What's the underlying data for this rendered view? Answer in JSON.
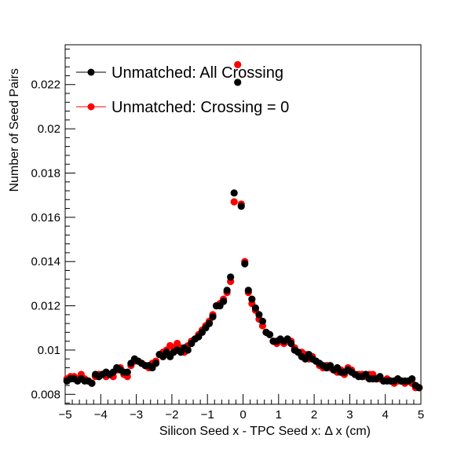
{
  "chart_data": {
    "type": "scatter",
    "title": "",
    "xlabel": "Silicon Seed x - TPC Seed x:      Δ x (cm)",
    "ylabel": "Number of Seed Pairs",
    "xlim": [
      -5,
      5
    ],
    "ylim": [
      0.00755,
      0.0238
    ],
    "xticks": [
      -5,
      -4,
      -3,
      -2,
      -1,
      0,
      1,
      2,
      3,
      4,
      5
    ],
    "xtick_labels": [
      "−5",
      "−4",
      "−3",
      "−2",
      "−1",
      "0",
      "1",
      "2",
      "3",
      "4",
      "5"
    ],
    "yticks": [
      0.008,
      0.01,
      0.012,
      0.014,
      0.016,
      0.018,
      0.02,
      0.022
    ],
    "ytick_labels": [
      "0.008",
      "0.01",
      "0.012",
      "0.014",
      "0.016",
      "0.018",
      "0.02",
      "0.022"
    ],
    "grid": false,
    "legend_position": "top-left",
    "series": [
      {
        "name": "Unmatched: Crossing = 0",
        "color": "#ff0000",
        "x": [
          -4.95,
          -4.85,
          -4.75,
          -4.65,
          -4.55,
          -4.45,
          -4.35,
          -4.25,
          -4.15,
          -4.05,
          -3.95,
          -3.85,
          -3.75,
          -3.65,
          -3.55,
          -3.45,
          -3.35,
          -3.25,
          -3.15,
          -3.05,
          -2.95,
          -2.85,
          -2.75,
          -2.65,
          -2.55,
          -2.45,
          -2.35,
          -2.25,
          -2.15,
          -2.05,
          -1.95,
          -1.85,
          -1.75,
          -1.65,
          -1.55,
          -1.45,
          -1.35,
          -1.25,
          -1.15,
          -1.05,
          -0.95,
          -0.85,
          -0.75,
          -0.65,
          -0.55,
          -0.45,
          -0.35,
          -0.25,
          -0.15,
          -0.05,
          0.05,
          0.15,
          0.25,
          0.35,
          0.45,
          0.55,
          0.65,
          0.75,
          0.85,
          0.95,
          1.05,
          1.15,
          1.25,
          1.35,
          1.45,
          1.55,
          1.65,
          1.75,
          1.85,
          1.95,
          2.05,
          2.15,
          2.25,
          2.35,
          2.45,
          2.55,
          2.65,
          2.75,
          2.85,
          2.95,
          3.05,
          3.15,
          3.25,
          3.35,
          3.45,
          3.55,
          3.65,
          3.75,
          3.85,
          3.95,
          4.05,
          4.15,
          4.25,
          4.35,
          4.45,
          4.55,
          4.65,
          4.75,
          4.85,
          4.95
        ],
        "y": [
          0.0087,
          0.0088,
          0.0088,
          0.0087,
          0.0089,
          0.0087,
          0.0086,
          0.0085,
          0.0088,
          0.0089,
          0.0089,
          0.0088,
          0.0089,
          0.0088,
          0.0091,
          0.0092,
          0.0089,
          0.0088,
          0.0093,
          0.0095,
          0.0095,
          0.0094,
          0.0093,
          0.0092,
          0.0094,
          0.0095,
          0.0098,
          0.0099,
          0.01,
          0.0102,
          0.0101,
          0.0103,
          0.0101,
          0.0099,
          0.0102,
          0.0104,
          0.0105,
          0.0107,
          0.0109,
          0.0111,
          0.0113,
          0.0116,
          0.012,
          0.0121,
          0.0123,
          0.0126,
          0.0131,
          0.0167,
          0.0229,
          0.0166,
          0.014,
          0.0126,
          0.0121,
          0.0118,
          0.0114,
          0.0111,
          0.0108,
          0.0107,
          0.0104,
          0.0103,
          0.0104,
          0.0103,
          0.0105,
          0.0104,
          0.0101,
          0.0099,
          0.0099,
          0.0098,
          0.0096,
          0.0097,
          0.0095,
          0.0093,
          0.0092,
          0.0093,
          0.0092,
          0.0091,
          0.009,
          0.0091,
          0.0089,
          0.0092,
          0.0091,
          0.0089,
          0.0089,
          0.0089,
          0.0088,
          0.0089,
          0.0089,
          0.0087,
          0.0087,
          0.0086,
          0.0087,
          0.0086,
          0.0085,
          0.0086,
          0.0086,
          0.0085,
          0.0086,
          0.0085,
          0.0083,
          0.0083
        ]
      },
      {
        "name": "Unmatched: All Crossing",
        "color": "#000000",
        "x": [
          -4.95,
          -4.85,
          -4.75,
          -4.65,
          -4.55,
          -4.45,
          -4.35,
          -4.25,
          -4.15,
          -4.05,
          -3.95,
          -3.85,
          -3.75,
          -3.65,
          -3.55,
          -3.45,
          -3.35,
          -3.25,
          -3.15,
          -3.05,
          -2.95,
          -2.85,
          -2.75,
          -2.65,
          -2.55,
          -2.45,
          -2.35,
          -2.25,
          -2.15,
          -2.05,
          -1.95,
          -1.85,
          -1.75,
          -1.65,
          -1.55,
          -1.45,
          -1.35,
          -1.25,
          -1.15,
          -1.05,
          -0.95,
          -0.85,
          -0.75,
          -0.65,
          -0.55,
          -0.45,
          -0.35,
          -0.25,
          -0.15,
          -0.05,
          0.05,
          0.15,
          0.25,
          0.35,
          0.45,
          0.55,
          0.65,
          0.75,
          0.85,
          0.95,
          1.05,
          1.15,
          1.25,
          1.35,
          1.45,
          1.55,
          1.65,
          1.75,
          1.85,
          1.95,
          2.05,
          2.15,
          2.25,
          2.35,
          2.45,
          2.55,
          2.65,
          2.75,
          2.85,
          2.95,
          3.05,
          3.15,
          3.25,
          3.35,
          3.45,
          3.55,
          3.65,
          3.75,
          3.85,
          3.95,
          4.05,
          4.15,
          4.25,
          4.35,
          4.45,
          4.55,
          4.65,
          4.75,
          4.85,
          4.95
        ],
        "y": [
          0.0086,
          0.0087,
          0.0087,
          0.0086,
          0.0087,
          0.0086,
          0.0086,
          0.0085,
          0.0089,
          0.0088,
          0.0089,
          0.009,
          0.0089,
          0.009,
          0.0092,
          0.0091,
          0.009,
          0.009,
          0.0094,
          0.0096,
          0.0095,
          0.0094,
          0.0093,
          0.0093,
          0.0092,
          0.0094,
          0.0098,
          0.0097,
          0.0099,
          0.0097,
          0.0099,
          0.01,
          0.0099,
          0.0101,
          0.01,
          0.0103,
          0.0105,
          0.0106,
          0.0108,
          0.011,
          0.0112,
          0.0115,
          0.012,
          0.012,
          0.0122,
          0.0127,
          0.0133,
          0.0171,
          0.0221,
          0.0165,
          0.0139,
          0.0127,
          0.0123,
          0.0119,
          0.0116,
          0.0113,
          0.0108,
          0.0107,
          0.0104,
          0.0104,
          0.0105,
          0.0104,
          0.0105,
          0.0103,
          0.01,
          0.0099,
          0.0097,
          0.0096,
          0.0098,
          0.0096,
          0.0095,
          0.0094,
          0.0093,
          0.0092,
          0.0093,
          0.0091,
          0.0092,
          0.009,
          0.009,
          0.0091,
          0.009,
          0.0089,
          0.0088,
          0.0088,
          0.0089,
          0.0087,
          0.0087,
          0.0087,
          0.0088,
          0.0086,
          0.0086,
          0.0086,
          0.0086,
          0.0087,
          0.0086,
          0.0086,
          0.0086,
          0.0087,
          0.0084,
          0.0083
        ]
      }
    ],
    "legend": [
      {
        "label": "Unmatched: All Crossing",
        "color": "#000000"
      },
      {
        "label": "Unmatched: Crossing = 0",
        "color": "#ff0000"
      }
    ]
  }
}
